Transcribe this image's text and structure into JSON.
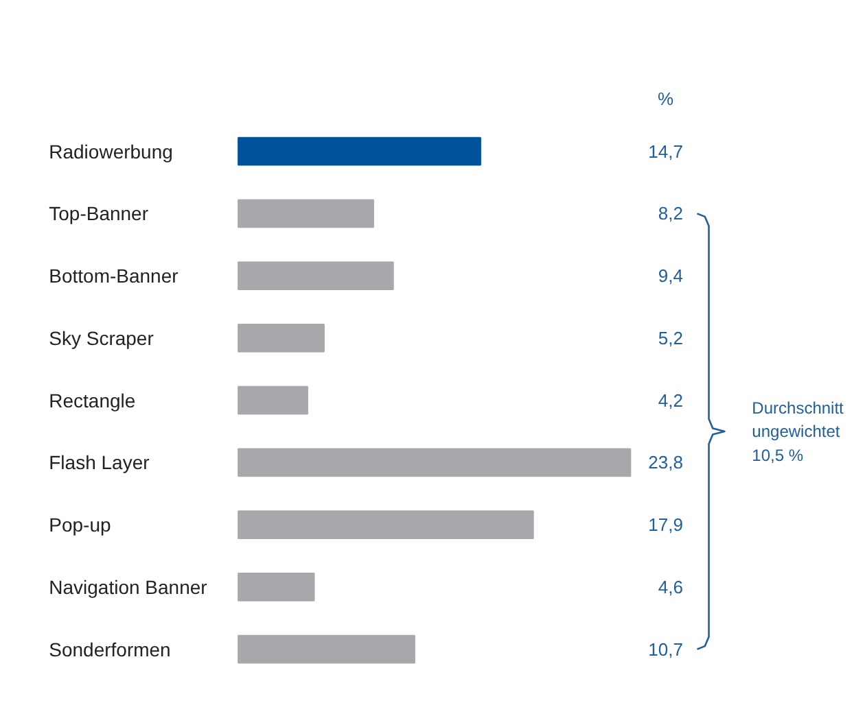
{
  "chart_data": {
    "type": "bar",
    "orientation": "horizontal",
    "categories": [
      "Radiowerbung",
      "Top-Banner",
      "Bottom-Banner",
      "Sky Scraper",
      "Rectangle",
      "Flash Layer",
      "Pop-up",
      "Navigation Banner",
      "Sonderformen"
    ],
    "values": [
      14.7,
      8.2,
      9.4,
      5.2,
      4.2,
      23.8,
      17.9,
      4.6,
      10.7
    ],
    "colors": [
      "#00539b",
      "#a7a8ab",
      "#a7a8ab",
      "#a7a8ab",
      "#a7a8ab",
      "#a7a8ab",
      "#a7a8ab",
      "#a7a8ab",
      "#a7a8ab"
    ],
    "value_labels": [
      "14,7",
      "8,2",
      "9,4",
      "5,2",
      "4,2",
      "23,8",
      "17,9",
      "4,6",
      "10,7"
    ],
    "annotations": [
      "%",
      "Durchschnitt\nungewichtet\n10,5 %"
    ]
  }
}
